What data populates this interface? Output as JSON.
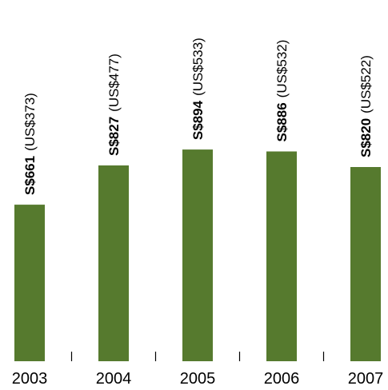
{
  "chart_data": {
    "type": "bar",
    "categories": [
      "2003",
      "2004",
      "2005",
      "2006",
      "2007"
    ],
    "values": [
      661,
      827,
      894,
      886,
      820
    ],
    "value_labels": [
      "S$661",
      "S$827",
      "S$894",
      "S$886",
      "S$820"
    ],
    "secondary_values": [
      373,
      477,
      533,
      532,
      522
    ],
    "secondary_labels": [
      "(US$373)",
      "(US$477)",
      "(US$533)",
      "(US$532)",
      "(US$522)"
    ],
    "title": "",
    "xlabel": "",
    "ylabel": "",
    "ylim": [
      0,
      1000
    ],
    "grid": false,
    "legend": "none",
    "bar_color": "#567a2e"
  }
}
